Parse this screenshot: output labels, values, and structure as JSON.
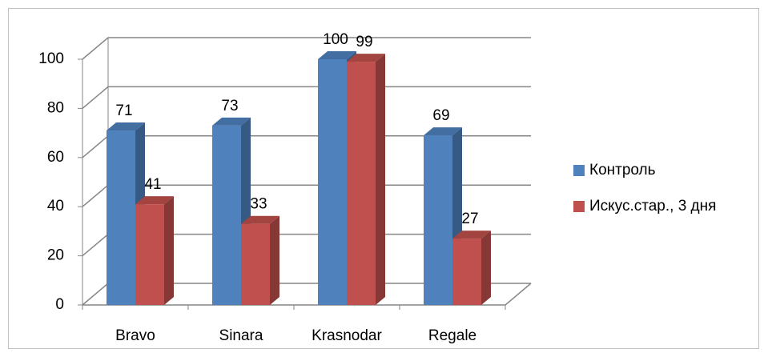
{
  "chart_data": {
    "type": "bar",
    "categories": [
      "Bravo",
      "Sinara",
      "Krasnodar",
      "Regale"
    ],
    "series": [
      {
        "name": "Контроль",
        "color": "#4f81bd",
        "values": [
          71,
          73,
          100,
          69
        ]
      },
      {
        "name": "Искус.стар., 3 дня",
        "color": "#c0504d",
        "values": [
          41,
          33,
          99,
          27
        ]
      }
    ],
    "ylim": [
      0,
      100
    ],
    "yticks": [
      0,
      20,
      40,
      60,
      80,
      100
    ],
    "grid": true,
    "legend": "right"
  }
}
